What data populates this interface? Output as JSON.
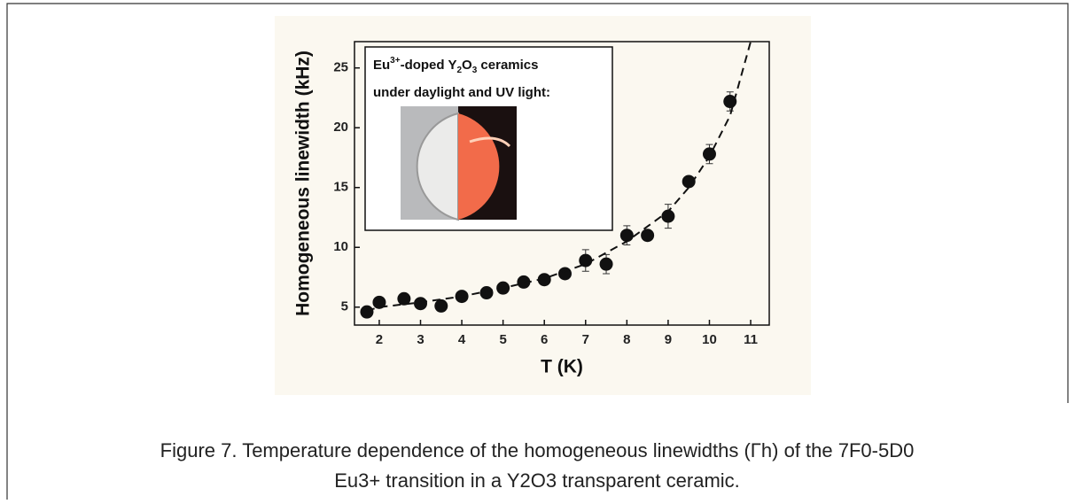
{
  "chart_data": {
    "type": "scatter",
    "xlabel": "T (K)",
    "ylabel": "Homogeneous linewidth (kHz)",
    "xlim": [
      1.4,
      11.45
    ],
    "ylim": [
      3.5,
      27.2
    ],
    "xticks": [
      2,
      3,
      4,
      5,
      6,
      7,
      8,
      9,
      10,
      11
    ],
    "yticks": [
      5,
      10,
      15,
      20,
      25
    ],
    "series": [
      {
        "color": "#111111",
        "x": [
          1.7,
          2,
          2.6,
          3,
          3.5,
          4,
          4.6,
          5,
          5.5,
          6,
          6.5,
          7,
          7.5,
          8,
          8.5,
          9,
          9.5,
          10,
          10.5
        ],
        "values": [
          4.6,
          5.4,
          5.7,
          5.3,
          5.1,
          5.9,
          6.2,
          6.6,
          7.1,
          7.3,
          7.8,
          8.9,
          8.6,
          11.0,
          11.0,
          12.6,
          15.5,
          17.8,
          22.2
        ],
        "errors": [
          0.3,
          0.3,
          0.3,
          0.3,
          0.3,
          0.3,
          0.3,
          0.3,
          0.3,
          0.3,
          0.3,
          0.9,
          0.8,
          0.8,
          0.4,
          1.0,
          0.4,
          0.8,
          0.8
        ]
      },
      {
        "type": "line",
        "color": "#111111",
        "dashed": true,
        "x": [
          1.7,
          2,
          3,
          4,
          5,
          6,
          7,
          8,
          9,
          9.5,
          10,
          10.5,
          11
        ],
        "values": [
          4.7,
          5.0,
          5.4,
          5.9,
          6.6,
          7.4,
          8.6,
          10.5,
          13.0,
          15.0,
          17.6,
          21.0,
          27.2
        ]
      }
    ],
    "inset": {
      "lines": [
        [
          "Eu",
          "3+",
          "-doped Y",
          "2",
          "O",
          "3",
          " ceramics"
        ],
        [
          "under daylight and UV light:"
        ]
      ]
    }
  },
  "caption": [
    "Figure 7. Temperature dependence of the homogeneous linewidths (Γh) of the 7F0-5D0",
    "Eu3+ transition in a Y2O3 transparent ceramic."
  ]
}
